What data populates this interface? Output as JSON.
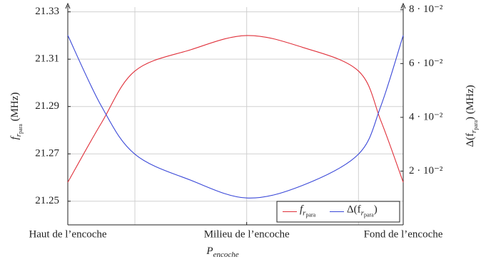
{
  "chart_data": {
    "type": "line",
    "xlabel_parts": [
      {
        "t": "P",
        "sub": 0
      },
      {
        "t": "encoche",
        "sub": 1
      }
    ],
    "ylabel_parts": [
      {
        "t": "f",
        "sub": 0
      },
      {
        "t": "r",
        "sub": 1
      },
      {
        "t": "para",
        "sub": 2
      },
      {
        "t": " (MHz)",
        "sub": 0
      }
    ],
    "y2label_parts": [
      {
        "t": "Δ(f",
        "sub": 0
      },
      {
        "t": "r",
        "sub": 1
      },
      {
        "t": "para",
        "sub": 2
      },
      {
        "t": ") (MHz)",
        "sub": 0
      }
    ],
    "xlim": [
      0.4,
      3.4
    ],
    "xticks": [
      {
        "value": 0.4,
        "label": "Haut de l’encoche"
      },
      {
        "value": 2,
        "label": "Milieu de l’encoche"
      },
      {
        "value": 3.4,
        "label": "Fond de l’encoche"
      }
    ],
    "xgrid": [
      1,
      2,
      3
    ],
    "ylim": [
      21.24,
      21.332
    ],
    "yticks": [
      21.25,
      21.27,
      21.29,
      21.31,
      21.33
    ],
    "y2lim": [
      0,
      0.081
    ],
    "y2ticks": [
      {
        "value": 0.02,
        "label": "2 · 10⁻²"
      },
      {
        "value": 0.04,
        "label": "4 · 10⁻²"
      },
      {
        "value": 0.06,
        "label": "6 · 10⁻²"
      },
      {
        "value": 0.08,
        "label": "8 · 10⁻²"
      }
    ],
    "grid": true,
    "legend": "lower right",
    "x": [
      0.4,
      0.7,
      1,
      1.5,
      2,
      2.5,
      3,
      3.2,
      3.4
    ],
    "series": [
      {
        "name_parts": [
          {
            "t": "f",
            "sub": 0
          },
          {
            "t": "r",
            "sub": 1
          },
          {
            "t": "para",
            "sub": 2
          }
        ],
        "color": "#e0303a",
        "values": [
          21.258,
          21.283,
          21.305,
          21.314,
          21.32,
          21.315,
          21.305,
          21.284,
          21.258
        ]
      },
      {
        "name_parts": [
          {
            "t": "Δ(f",
            "sub": 0
          },
          {
            "t": "r",
            "sub": 1
          },
          {
            "t": "para",
            "sub": 2
          },
          {
            "t": ")",
            "sub": 0
          }
        ],
        "color": "#3a48d8",
        "axis": "y2",
        "values": [
          0.0705,
          0.0442,
          0.0263,
          0.0166,
          0.01,
          0.0147,
          0.0263,
          0.0442,
          0.0705
        ]
      }
    ]
  }
}
